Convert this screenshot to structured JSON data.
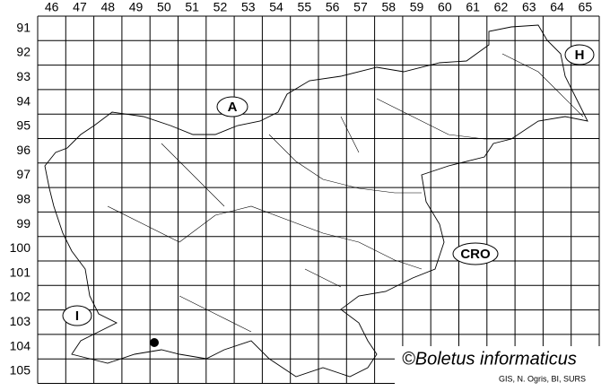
{
  "columns": [
    46,
    47,
    48,
    49,
    50,
    51,
    52,
    53,
    54,
    55,
    56,
    57,
    58,
    59,
    60,
    61,
    62,
    63,
    64,
    65
  ],
  "rows": [
    91,
    92,
    93,
    94,
    95,
    96,
    97,
    98,
    99,
    100,
    101,
    102,
    103,
    104,
    105
  ],
  "countries": {
    "austria": "A",
    "hungary": "H",
    "croatia": "CRO",
    "italy": "I"
  },
  "copyright": "©Boletus informaticus",
  "credit": "GIS, N. Ogris, BI, SURS"
}
